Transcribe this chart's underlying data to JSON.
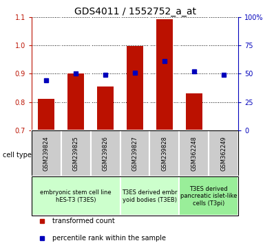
{
  "title": "GDS4011 / 1552752_a_at",
  "samples": [
    "GSM239824",
    "GSM239825",
    "GSM239826",
    "GSM239827",
    "GSM239828",
    "GSM362248",
    "GSM362249"
  ],
  "transformed_count": [
    0.812,
    0.9,
    0.856,
    0.999,
    1.092,
    0.832,
    0.701
  ],
  "percentile_rank_pct": [
    44,
    50,
    49,
    51,
    61,
    52,
    49
  ],
  "ylim_left": [
    0.7,
    1.1
  ],
  "ylim_right": [
    0,
    100
  ],
  "yticks_left": [
    0.7,
    0.8,
    0.9,
    1.0,
    1.1
  ],
  "yticks_right": [
    0,
    25,
    50,
    75,
    100
  ],
  "bar_color": "#bb1100",
  "dot_color": "#0000bb",
  "bar_bottom": 0.7,
  "bar_width": 0.55,
  "groups": [
    {
      "label": "embryonic stem cell line\nhES-T3 (T3ES)",
      "start": 0,
      "end": 3,
      "color": "#ccffcc"
    },
    {
      "label": "T3ES derived embr\nyoid bodies (T3EB)",
      "start": 3,
      "end": 5,
      "color": "#ccffcc"
    },
    {
      "label": "T3ES derived\npancreatic islet-like\ncells (T3pi)",
      "start": 5,
      "end": 7,
      "color": "#99ee99"
    }
  ],
  "legend_items": [
    {
      "label": "transformed count",
      "color": "#bb1100"
    },
    {
      "label": "percentile rank within the sample",
      "color": "#0000bb"
    }
  ],
  "background_color": "#ffffff",
  "sample_box_color": "#cccccc",
  "title_fontsize": 10,
  "tick_fontsize": 7,
  "sample_fontsize": 6,
  "group_fontsize": 6,
  "legend_fontsize": 7
}
